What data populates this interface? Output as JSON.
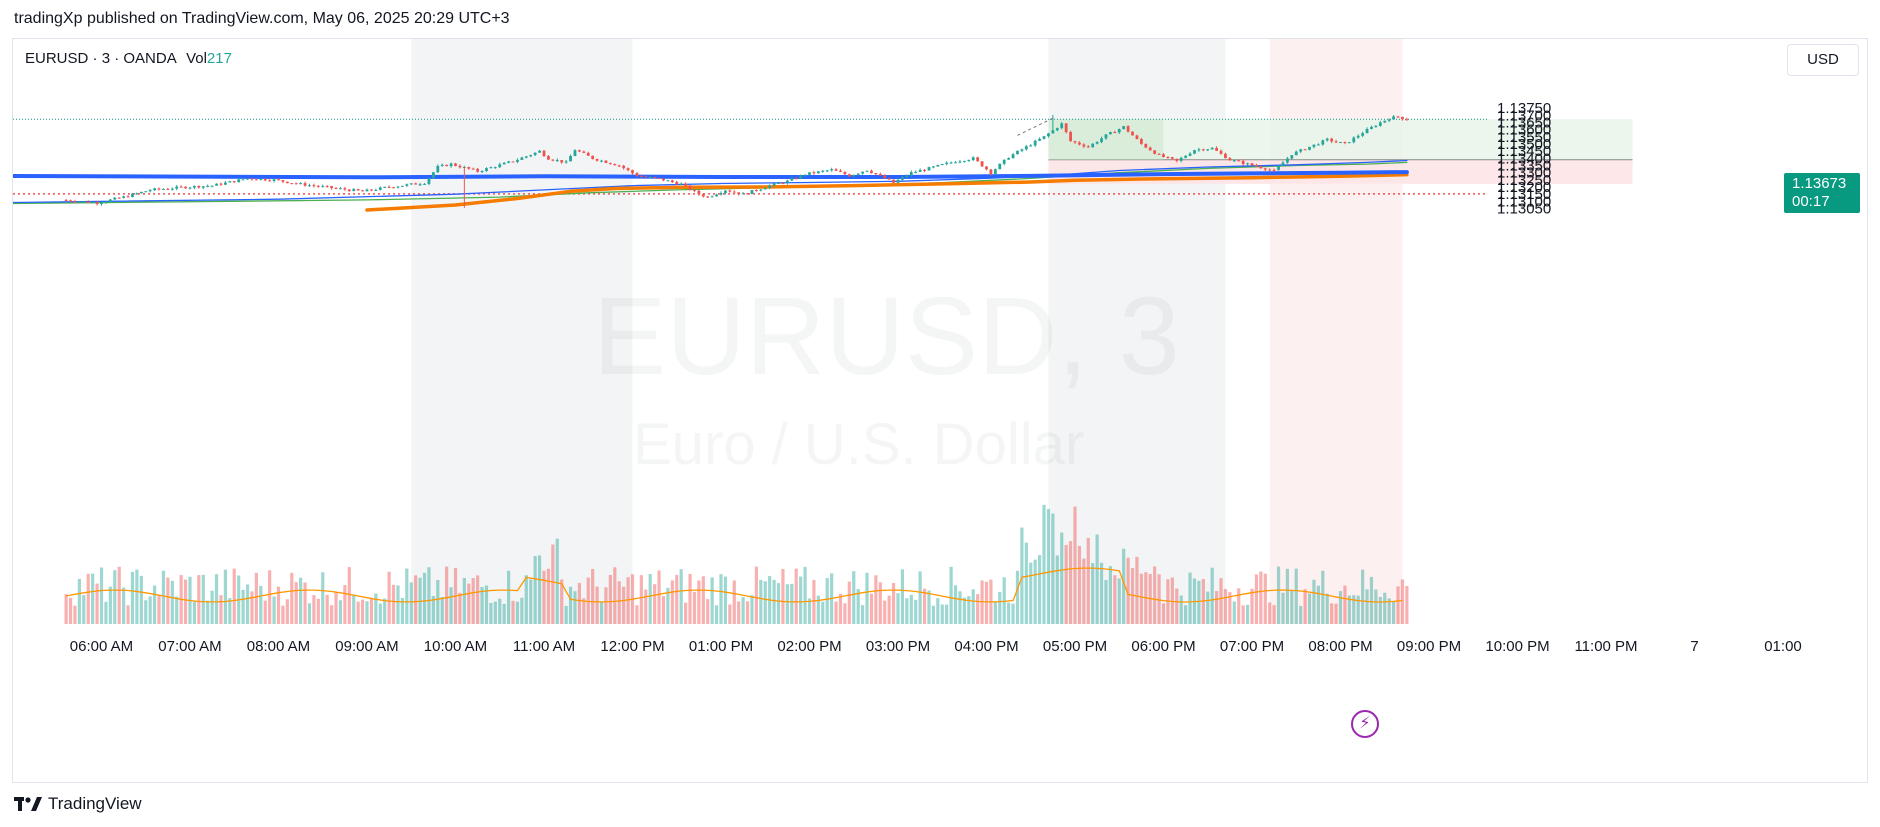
{
  "header": {
    "published_line": "tradingXp published on TradingView.com, May 06, 2025 20:29 UTC+3"
  },
  "symbol": {
    "name": "EURUSD",
    "interval": "3",
    "exchange": "OANDA",
    "vol_label": "Vol",
    "vol_value": "217"
  },
  "watermark": {
    "ticker": "EURUSD, 3",
    "description": "Euro / U.S. Dollar"
  },
  "currency_button": "USD",
  "last_price": {
    "price": "1.13673",
    "countdown": "00:17",
    "color": "#089981"
  },
  "footer": {
    "brand": "TradingView"
  },
  "icons": {
    "lightning": "lightning-icon",
    "logo": "tradingview-logo-icon"
  },
  "colors": {
    "up": "#26a69a",
    "down": "#ef5350",
    "ma_thick_blue": "#2962ff",
    "ma_orange": "#f57c00",
    "ma_thin_blue": "#2962ff",
    "ma_green": "#4caf50",
    "vol_ma": "#ff9800",
    "profit_zone": "#e8f5e9",
    "loss_zone": "#fde4e6",
    "support_line": "#ef5350"
  },
  "chart_data": {
    "type": "candlestick",
    "symbol": "EURUSD",
    "timeframe": "3",
    "ylim": [
      1.1303,
      1.138
    ],
    "y_ticks": [
      "1.13750",
      "1.13700",
      "1.13650",
      "1.13600",
      "1.13550",
      "1.13500",
      "1.13450",
      "1.13400",
      "1.13350",
      "1.13300",
      "1.13250",
      "1.13200",
      "1.13150",
      "1.13100",
      "1.13050"
    ],
    "x_ticks": [
      "06:00 AM",
      "07:00 AM",
      "08:00 AM",
      "09:00 AM",
      "10:00 AM",
      "11:00 AM",
      "12:00 PM",
      "01:00 PM",
      "02:00 PM",
      "03:00 PM",
      "04:00 PM",
      "05:00 PM",
      "06:00 PM",
      "07:00 PM",
      "08:00 PM",
      "09:00 PM",
      "10:00 PM",
      "11:00 PM",
      "7",
      "01:00"
    ],
    "price_path": [
      [
        5.6,
        1.1311
      ],
      [
        6.0,
        1.1309
      ],
      [
        6.3,
        1.1313
      ],
      [
        6.6,
        1.1318
      ],
      [
        7.0,
        1.132
      ],
      [
        7.3,
        1.1321
      ],
      [
        7.7,
        1.1326
      ],
      [
        8.0,
        1.1325
      ],
      [
        8.3,
        1.1322
      ],
      [
        8.7,
        1.1319
      ],
      [
        9.0,
        1.1317
      ],
      [
        9.3,
        1.132
      ],
      [
        9.7,
        1.1323
      ],
      [
        9.85,
        1.1334
      ],
      [
        10.0,
        1.1336
      ],
      [
        10.3,
        1.1331
      ],
      [
        10.7,
        1.1338
      ],
      [
        11.0,
        1.1345
      ],
      [
        11.1,
        1.134
      ],
      [
        11.3,
        1.1337
      ],
      [
        11.4,
        1.1346
      ],
      [
        11.6,
        1.134
      ],
      [
        11.9,
        1.1335
      ],
      [
        12.1,
        1.1328
      ],
      [
        12.4,
        1.1325
      ],
      [
        12.6,
        1.1322
      ],
      [
        12.8,
        1.1315
      ],
      [
        12.9,
        1.1313
      ],
      [
        13.1,
        1.1318
      ],
      [
        13.3,
        1.1315
      ],
      [
        13.6,
        1.1321
      ],
      [
        13.8,
        1.1324
      ],
      [
        14.0,
        1.1329
      ],
      [
        14.3,
        1.1332
      ],
      [
        14.5,
        1.1328
      ],
      [
        14.7,
        1.1332
      ],
      [
        15.0,
        1.1323
      ],
      [
        15.2,
        1.133
      ],
      [
        15.4,
        1.1333
      ],
      [
        15.7,
        1.1338
      ],
      [
        15.9,
        1.134
      ],
      [
        16.1,
        1.133
      ],
      [
        16.3,
        1.1341
      ],
      [
        16.5,
        1.1348
      ],
      [
        16.7,
        1.1355
      ],
      [
        16.9,
        1.1364
      ],
      [
        17.0,
        1.1352
      ],
      [
        17.2,
        1.1348
      ],
      [
        17.4,
        1.1356
      ],
      [
        17.6,
        1.1362
      ],
      [
        17.8,
        1.135
      ],
      [
        18.0,
        1.1342
      ],
      [
        18.2,
        1.1338
      ],
      [
        18.4,
        1.1346
      ],
      [
        18.6,
        1.1347
      ],
      [
        18.8,
        1.1339
      ],
      [
        19.0,
        1.1336
      ],
      [
        19.2,
        1.1333
      ],
      [
        19.3,
        1.1331
      ],
      [
        19.5,
        1.1343
      ],
      [
        19.7,
        1.1348
      ],
      [
        19.9,
        1.1353
      ],
      [
        20.1,
        1.135
      ],
      [
        20.3,
        1.1358
      ],
      [
        20.5,
        1.1365
      ],
      [
        20.6,
        1.1368
      ],
      [
        20.7,
        1.1369
      ],
      [
        20.8,
        1.1367
      ]
    ],
    "moving_averages": {
      "ma_thick_blue": [
        [
          5.0,
          1.13277
        ],
        [
          9.0,
          1.13268
        ],
        [
          11.0,
          1.13275
        ],
        [
          13.0,
          1.1327
        ],
        [
          15.0,
          1.1327
        ],
        [
          16.5,
          1.13278
        ],
        [
          18.0,
          1.1329
        ],
        [
          19.0,
          1.13295
        ],
        [
          20.0,
          1.133
        ],
        [
          20.75,
          1.13304
        ]
      ],
      "ma_orange": [
        [
          9.0,
          1.1304
        ],
        [
          10.0,
          1.13075
        ],
        [
          10.7,
          1.1312
        ],
        [
          11.3,
          1.1317
        ],
        [
          11.8,
          1.1319
        ],
        [
          12.6,
          1.13198
        ],
        [
          13.5,
          1.132
        ],
        [
          14.5,
          1.1321
        ],
        [
          15.5,
          1.13222
        ],
        [
          16.5,
          1.13235
        ],
        [
          17.0,
          1.13248
        ],
        [
          18.0,
          1.13258
        ],
        [
          19.0,
          1.13265
        ],
        [
          20.0,
          1.13275
        ],
        [
          20.75,
          1.13287
        ]
      ],
      "ma_thin_blue": [
        [
          5.0,
          1.13092
        ],
        [
          8.0,
          1.13115
        ],
        [
          10.0,
          1.1315
        ],
        [
          11.0,
          1.1318
        ],
        [
          12.0,
          1.1321
        ],
        [
          13.0,
          1.13225
        ],
        [
          14.0,
          1.13232
        ],
        [
          15.0,
          1.1324
        ],
        [
          16.0,
          1.1326
        ],
        [
          16.7,
          1.1328
        ],
        [
          17.5,
          1.13315
        ],
        [
          18.5,
          1.1334
        ],
        [
          19.5,
          1.13355
        ],
        [
          20.3,
          1.13372
        ],
        [
          20.75,
          1.13385
        ]
      ],
      "ma_green": [
        [
          5.0,
          1.13085
        ],
        [
          7.0,
          1.13098
        ],
        [
          9.0,
          1.1311
        ],
        [
          10.5,
          1.1313
        ],
        [
          11.5,
          1.1316
        ],
        [
          12.5,
          1.1318
        ],
        [
          13.5,
          1.13195
        ],
        [
          14.5,
          1.1321
        ],
        [
          15.5,
          1.1323
        ],
        [
          16.5,
          1.1326
        ],
        [
          17.5,
          1.133
        ],
        [
          18.5,
          1.1333
        ],
        [
          19.5,
          1.1335
        ],
        [
          20.3,
          1.1336
        ],
        [
          20.75,
          1.13372
        ]
      ]
    },
    "position_tool": {
      "start_hour": 16.7,
      "end_hour": 23.3,
      "entry": 1.1339,
      "target": 1.13673,
      "stop": 1.13222
    },
    "levels": {
      "last_price": 1.13673,
      "support_dotted": 1.13152
    },
    "session_highlights": [
      [
        9.5,
        12.0
      ],
      [
        16.7,
        18.7
      ],
      [
        19.2,
        20.7
      ]
    ]
  }
}
